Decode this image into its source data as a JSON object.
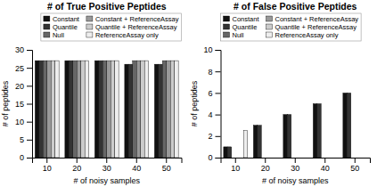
{
  "chart_data": [
    {
      "type": "bar",
      "title": "# of True Positive Peptides",
      "xlabel": "# of noisy samples",
      "ylabel": "# of peptides",
      "categories": [
        "10",
        "20",
        "30",
        "40",
        "50"
      ],
      "series": [
        {
          "name": "Constant",
          "color": "#111111",
          "values": [
            27,
            27,
            27,
            26,
            26
          ]
        },
        {
          "name": "Quantile",
          "color": "#333333",
          "values": [
            27,
            27,
            27,
            26,
            26
          ]
        },
        {
          "name": "Null",
          "color": "#666666",
          "values": [
            27,
            27,
            27,
            27,
            27
          ]
        },
        {
          "name": "Constant + ReferenceAssay",
          "color": "#999999",
          "values": [
            27,
            27,
            27,
            27,
            27
          ]
        },
        {
          "name": "Quantile + ReferenceAssay",
          "color": "#cccccc",
          "values": [
            27,
            27,
            27,
            27,
            27
          ]
        },
        {
          "name": "ReferenceAssay only",
          "color": "#eeeeee",
          "values": [
            27,
            27,
            27,
            27,
            27
          ]
        }
      ],
      "ylim": [
        0,
        30
      ],
      "yticks": [
        0,
        5,
        10,
        15,
        20,
        25,
        30
      ],
      "grid": false,
      "legend": "upper right"
    },
    {
      "type": "bar",
      "title": "# of False Positive Peptides",
      "xlabel": "# of noisy samples",
      "ylabel": "# of peptides",
      "categories": [
        "10",
        "20",
        "30",
        "40",
        "50"
      ],
      "series": [
        {
          "name": "Constant",
          "color": "#111111",
          "values": [
            1,
            3,
            4,
            5,
            6
          ]
        },
        {
          "name": "Quantile",
          "color": "#333333",
          "values": [
            1,
            3,
            4,
            5,
            6
          ]
        },
        {
          "name": "Null",
          "color": "#666666",
          "values": [
            0,
            0,
            0,
            0,
            0
          ]
        },
        {
          "name": "Constant + ReferenceAssay",
          "color": "#999999",
          "values": [
            0,
            0,
            0,
            0,
            0
          ]
        },
        {
          "name": "Quantile + ReferenceAssay",
          "color": "#cccccc",
          "values": [
            0,
            0,
            0,
            0,
            0
          ]
        },
        {
          "name": "ReferenceAssay only",
          "color": "#eeeeee",
          "values": [
            2.5,
            0,
            0,
            0,
            0
          ]
        }
      ],
      "ylim": [
        0,
        10
      ],
      "yticks": [
        0,
        2,
        4,
        6,
        8,
        10
      ],
      "grid": false,
      "legend": "upper left"
    }
  ]
}
